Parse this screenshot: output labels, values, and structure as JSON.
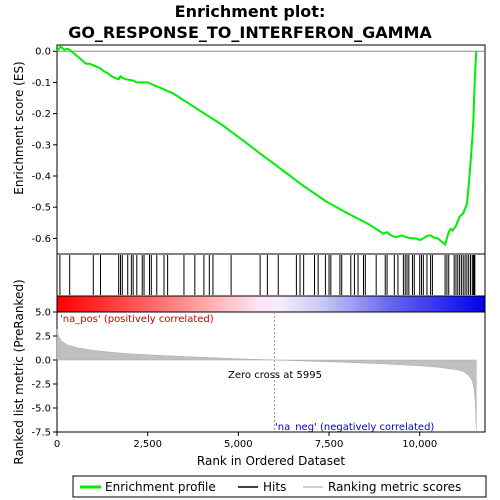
{
  "chart_data": [
    {
      "type": "line",
      "title": "Enrichment plot:",
      "subtitle": "GO_RESPONSE_TO_INTERFERON_GAMMA",
      "ylabel": "Enrichment score (ES)",
      "ylim": [
        -0.65,
        0.02
      ],
      "yticks": [
        "0.0",
        "-0.1",
        "-0.2",
        "-0.3",
        "-0.4",
        "-0.5",
        "-0.6"
      ],
      "xlim": [
        0,
        11800
      ],
      "series": [
        {
          "name": "Enrichment profile",
          "color": "#00ee00",
          "x": [
            0,
            100,
            200,
            300,
            400,
            500,
            600,
            700,
            800,
            900,
            1000,
            1100,
            1200,
            1300,
            1400,
            1500,
            1600,
            1700,
            1750,
            1800,
            1900,
            2000,
            2100,
            2200,
            2300,
            2400,
            2500,
            2600,
            2700,
            2800,
            2900,
            3000,
            3200,
            3400,
            3600,
            3800,
            4000,
            4200,
            4400,
            4600,
            4800,
            5000,
            5200,
            5400,
            5600,
            5800,
            6000,
            6200,
            6400,
            6600,
            6800,
            7000,
            7200,
            7400,
            7600,
            7800,
            8000,
            8200,
            8400,
            8600,
            8800,
            9000,
            9100,
            9200,
            9300,
            9400,
            9500,
            9600,
            9700,
            9800,
            9900,
            10000,
            10100,
            10200,
            10300,
            10400,
            10500,
            10600,
            10700,
            10750,
            10800,
            10850,
            10900,
            11000,
            11100,
            11200,
            11300,
            11350,
            11400,
            11450,
            11480,
            11500,
            11520,
            11540,
            11560
          ],
          "values": [
            0.0,
            0.015,
            0.005,
            0.008,
            0.0,
            -0.01,
            -0.02,
            -0.03,
            -0.04,
            -0.04,
            -0.045,
            -0.05,
            -0.055,
            -0.065,
            -0.07,
            -0.08,
            -0.085,
            -0.09,
            -0.08,
            -0.085,
            -0.09,
            -0.092,
            -0.094,
            -0.1,
            -0.1,
            -0.1,
            -0.1,
            -0.105,
            -0.11,
            -0.115,
            -0.12,
            -0.125,
            -0.135,
            -0.15,
            -0.165,
            -0.18,
            -0.195,
            -0.21,
            -0.225,
            -0.24,
            -0.258,
            -0.275,
            -0.292,
            -0.31,
            -0.328,
            -0.345,
            -0.362,
            -0.38,
            -0.397,
            -0.415,
            -0.432,
            -0.448,
            -0.464,
            -0.48,
            -0.493,
            -0.506,
            -0.519,
            -0.531,
            -0.543,
            -0.555,
            -0.57,
            -0.585,
            -0.58,
            -0.59,
            -0.595,
            -0.595,
            -0.59,
            -0.595,
            -0.598,
            -0.6,
            -0.6,
            -0.605,
            -0.6,
            -0.592,
            -0.59,
            -0.598,
            -0.6,
            -0.61,
            -0.62,
            -0.6,
            -0.58,
            -0.57,
            -0.575,
            -0.56,
            -0.53,
            -0.52,
            -0.49,
            -0.43,
            -0.36,
            -0.28,
            -0.22,
            -0.15,
            -0.09,
            -0.04,
            0.0
          ]
        }
      ]
    },
    {
      "type": "line",
      "series": [
        {
          "name": "Hits",
          "color": "#000000",
          "x": [
            80,
            350,
            1000,
            1200,
            1700,
            1750,
            1800,
            1950,
            2050,
            2100,
            2200,
            2350,
            2400,
            2550,
            2600,
            2750,
            2950,
            3050,
            3500,
            3800,
            4050,
            4200,
            4300,
            4800,
            5600,
            5800,
            6100,
            6600,
            6700,
            6800,
            7100,
            7200,
            7400,
            7500,
            7550,
            7800,
            7850,
            8100,
            8200,
            8300,
            8450,
            8500,
            8800,
            9050,
            9100,
            9300,
            9400,
            9550,
            9600,
            9650,
            9700,
            9800,
            9850,
            10000,
            10050,
            10100,
            10200,
            10300,
            10350,
            10700,
            10750,
            10800,
            10950,
            11000,
            11050,
            11100,
            11150,
            11200,
            11250,
            11300,
            11350,
            11400,
            11450,
            11480,
            11500,
            11520
          ]
        }
      ]
    },
    {
      "type": "area",
      "ylabel": "Ranked list metric (PreRanked)",
      "xlabel": "Rank in Ordered Dataset",
      "ylim": [
        -7.5,
        5.0
      ],
      "yticks": [
        "5.0",
        "2.5",
        "0.0",
        "-2.5",
        "-5.0",
        "-7.5"
      ],
      "xticks": [
        "0",
        "2,500",
        "5,000",
        "7,500",
        "10,000"
      ],
      "annotations": {
        "pos": "'na_pos' (positively correlated)",
        "neg": "'na_neg' (negatively correlated)",
        "zero": "Zero cross at 5995"
      },
      "series": [
        {
          "name": "Ranking metric scores",
          "color": "#c0c0c0",
          "x": [
            0,
            50,
            150,
            300,
            600,
            1000,
            1500,
            2000,
            3000,
            4000,
            5000,
            5995,
            7000,
            8000,
            9000,
            10000,
            10500,
            11000,
            11200,
            11350,
            11450,
            11500,
            11530,
            11560
          ],
          "values": [
            3.2,
            2.4,
            1.9,
            1.55,
            1.25,
            1.0,
            0.8,
            0.65,
            0.45,
            0.28,
            0.12,
            0.0,
            -0.13,
            -0.25,
            -0.4,
            -0.6,
            -0.75,
            -1.0,
            -1.2,
            -1.6,
            -2.2,
            -3.0,
            -4.5,
            -7.3
          ]
        }
      ]
    }
  ],
  "legend": {
    "items": [
      "Enrichment profile",
      "Hits",
      "Ranking metric scores"
    ]
  },
  "colors": {
    "profile": "#00ee00",
    "hits": "#000000",
    "metric": "#c0c0c0",
    "pos": "#ff0000",
    "neg": "#0000ff"
  }
}
